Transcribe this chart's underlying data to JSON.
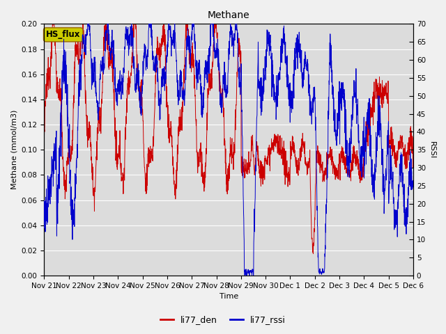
{
  "title": "Methane",
  "ylabel_left": "Methane (mmol/m3)",
  "ylabel_right": "RSSI",
  "xlabel": "Time",
  "ylim_left": [
    0.0,
    0.2
  ],
  "ylim_right": [
    0,
    70
  ],
  "yticks_left": [
    0.0,
    0.02,
    0.04,
    0.06,
    0.08,
    0.1,
    0.12,
    0.14,
    0.16,
    0.18,
    0.2
  ],
  "yticks_right": [
    0,
    5,
    10,
    15,
    20,
    25,
    30,
    35,
    40,
    45,
    50,
    55,
    60,
    65,
    70
  ],
  "xtick_labels": [
    "Nov 21",
    "Nov 22",
    "Nov 23",
    "Nov 24",
    "Nov 25",
    "Nov 26",
    "Nov 27",
    "Nov 28",
    "Nov 29",
    "Nov 30",
    "Dec 1",
    "Dec 2",
    "Dec 3",
    "Dec 4",
    "Dec 5",
    "Dec 6"
  ],
  "line1_color": "#cc0000",
  "line2_color": "#0000cc",
  "line1_label": "li77_den",
  "line2_label": "li77_rssi",
  "legend_box_label": "HS_flux",
  "legend_box_facecolor": "#cccc00",
  "legend_box_edgecolor": "#996600",
  "figure_facecolor": "#f0f0f0",
  "plot_facecolor": "#dcdcdc",
  "grid_color": "#ffffff",
  "title_fontsize": 10,
  "axis_fontsize": 8,
  "tick_fontsize": 7.5,
  "legend_fontsize": 9
}
